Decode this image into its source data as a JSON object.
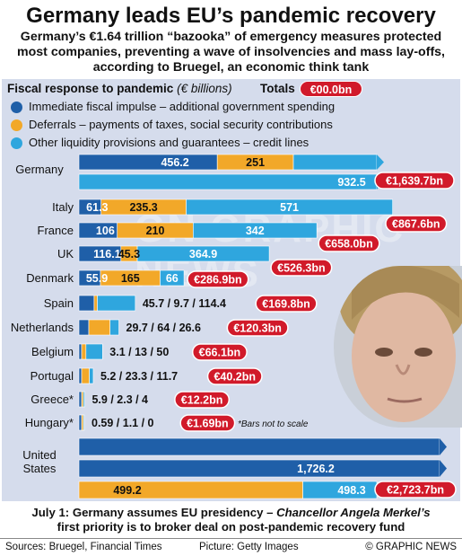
{
  "header": {
    "title": "Germany leads EU’s pandemic recovery",
    "subtitle": "Germany’s €1.64 trillion “bazooka” of emergency measures protected most companies, preventing a wave of insolvencies and mass lay-offs, according to Bruegel, an economic think tank"
  },
  "legend": {
    "heading": "Fiscal response to pandemic",
    "unit": "(€ billions)",
    "totals_label": "Totals",
    "totals_example": "€00.0bn",
    "items": [
      {
        "label": "Immediate fiscal impulse – additional government spending",
        "color": "#1f5fa8"
      },
      {
        "label": "Deferrals – payments of taxes, social security contributions",
        "color": "#f2a829"
      },
      {
        "label": "Other liquidity provisions and guarantees – credit lines",
        "color": "#2fa6de"
      }
    ]
  },
  "colors": {
    "impulse": "#1f5fa8",
    "deferral": "#f2a829",
    "liquidity": "#2fa6de",
    "total": "#d11a2a",
    "panel": "#d5dcec"
  },
  "note_scale": "*Bars not to scale",
  "chart_data": {
    "type": "bar",
    "orientation": "horizontal-stacked",
    "unit": "€ billions",
    "series": [
      {
        "name": "Immediate fiscal impulse – additional government spending"
      },
      {
        "name": "Deferrals – payments of taxes, social security contributions"
      },
      {
        "name": "Other liquidity provisions and guarantees – credit lines"
      }
    ],
    "rows": [
      {
        "country": "Germany",
        "impulse": 456.2,
        "deferral": 251,
        "liquidity": 932.5,
        "total": "€1,639.7bn",
        "labels": [
          "456.2",
          "251",
          "932.5"
        ]
      },
      {
        "country": "Italy",
        "impulse": 61.3,
        "deferral": 235.3,
        "liquidity": 571,
        "total": "€867.6bn",
        "labels": [
          "61.3",
          "235.3",
          "571"
        ]
      },
      {
        "country": "France",
        "impulse": 106,
        "deferral": 210,
        "liquidity": 342,
        "total": "€658.0bn",
        "labels": [
          "106",
          "210",
          "342"
        ]
      },
      {
        "country": "UK",
        "impulse": 116.1,
        "deferral": 45.3,
        "liquidity": 364.9,
        "total": "€526.3bn",
        "labels": [
          "116.1",
          "45.3",
          "364.9"
        ]
      },
      {
        "country": "Denmark",
        "impulse": 55.9,
        "deferral": 165,
        "liquidity": 66,
        "total": "€286.9bn",
        "labels": [
          "55.9",
          "165",
          "66"
        ]
      },
      {
        "country": "Spain",
        "impulse": 45.7,
        "deferral": 9.7,
        "liquidity": 114.4,
        "total": "€169.8bn",
        "text": "45.7 / 9.7 / 114.4"
      },
      {
        "country": "Netherlands",
        "impulse": 29.7,
        "deferral": 64,
        "liquidity": 26.6,
        "total": "€120.3bn",
        "text": "29.7 / 64 / 26.6"
      },
      {
        "country": "Belgium",
        "impulse": 3.1,
        "deferral": 13,
        "liquidity": 50,
        "total": "€66.1bn",
        "text": "3.1 / 13 / 50"
      },
      {
        "country": "Portugal",
        "impulse": 5.2,
        "deferral": 23.3,
        "liquidity": 11.7,
        "total": "€40.2bn",
        "text": "5.2 / 23.3 / 11.7"
      },
      {
        "country": "Greece*",
        "impulse": 5.9,
        "deferral": 2.3,
        "liquidity": 4,
        "total": "€12.2bn",
        "text": "5.9 / 2.3 / 4"
      },
      {
        "country": "Hungary*",
        "impulse": 0.59,
        "deferral": 1.1,
        "liquidity": 0,
        "total": "€1.69bn",
        "text": "0.59 / 1.1 / 0"
      },
      {
        "country": "United States",
        "impulse": 1726.2,
        "deferral": 499.2,
        "liquidity": 498.3,
        "total": "€2,723.7bn",
        "labels": [
          "1,726.2",
          "499.2",
          "498.3"
        ]
      }
    ]
  },
  "footer": {
    "note_prefix": "July 1: Germany assumes EU presidency –",
    "note_name": "Chancellor Angela Merkel’s",
    "note_suffix": "first priority is to broker deal on post-pandemic recovery fund",
    "sources": "Sources: Bruegel, Financial Times",
    "picture": "Picture: Getty Images",
    "copyright": "© GRAPHIC NEWS"
  },
  "watermark": "GN GRAPHIC NEWS"
}
